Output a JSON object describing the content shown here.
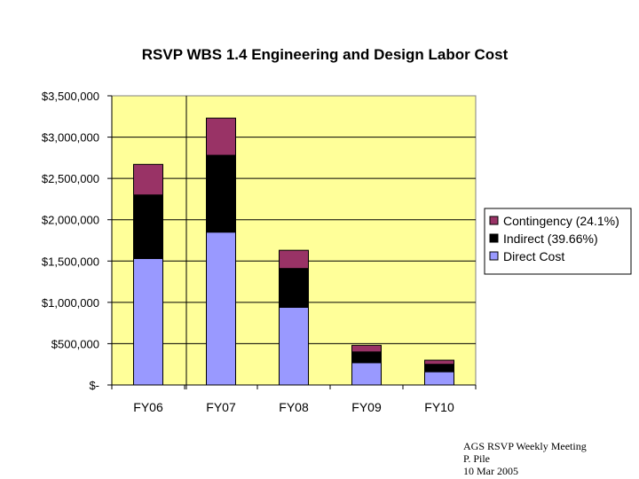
{
  "chart_data": {
    "type": "bar",
    "stacked": true,
    "title": "RSVP WBS 1.4 Engineering and Design Labor Cost",
    "xlabel": "",
    "ylabel": "",
    "categories": [
      "FY06",
      "FY07",
      "FY08",
      "FY09",
      "FY10"
    ],
    "series": [
      {
        "name": "Direct Cost",
        "values": [
          1530000,
          1850000,
          940000,
          270000,
          160000
        ],
        "color": "#9999ff"
      },
      {
        "name": "Indirect (39.66%)",
        "values": [
          770000,
          930000,
          470000,
          130000,
          90000
        ],
        "color": "#000000"
      },
      {
        "name": "Contingency (24.1%)",
        "values": [
          370000,
          450000,
          220000,
          80000,
          50000
        ],
        "color": "#993366"
      }
    ],
    "ylim": [
      0,
      3500000
    ],
    "ytick_values": [
      0,
      500000,
      1000000,
      1500000,
      2000000,
      2500000,
      3000000,
      3500000
    ],
    "ytick_labels": [
      "$-",
      "$500,000",
      "$1,000,000",
      "$1,500,000",
      "$2,000,000",
      "$2,500,000",
      "$3,000,000",
      "$3,500,000"
    ],
    "grid": true,
    "legend_position": "right",
    "plot_background": "#ffff99"
  },
  "footer": {
    "line1": "AGS RSVP Weekly Meeting",
    "line2": "P. Pile",
    "line3": "10 Mar 2005"
  }
}
